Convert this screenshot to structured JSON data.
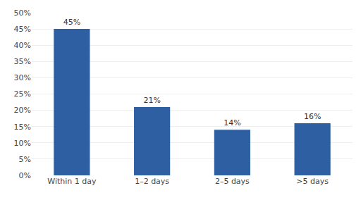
{
  "chart_data": {
    "type": "bar",
    "categories": [
      "Within 1 day",
      "1–2 days",
      "2–5 days",
      ">5 days"
    ],
    "values": [
      45,
      21,
      14,
      16
    ],
    "value_labels": [
      "45%",
      "21%",
      "14%",
      "16%"
    ],
    "data_labels": true,
    "color": "#2E5FA3",
    "ylim": [
      0,
      50
    ],
    "yticks": [
      {
        "value": 0,
        "label": "0%"
      },
      {
        "value": 5,
        "label": "5%"
      },
      {
        "value": 10,
        "label": "10%"
      },
      {
        "value": 15,
        "label": "15%"
      },
      {
        "value": 20,
        "label": "20%"
      },
      {
        "value": 25,
        "label": "25%"
      },
      {
        "value": 30,
        "label": "30%"
      },
      {
        "value": 35,
        "label": "35%"
      },
      {
        "value": 40,
        "label": "40%"
      },
      {
        "value": 45,
        "label": "45%"
      },
      {
        "value": 50,
        "label": "50%"
      }
    ],
    "grid": true
  }
}
